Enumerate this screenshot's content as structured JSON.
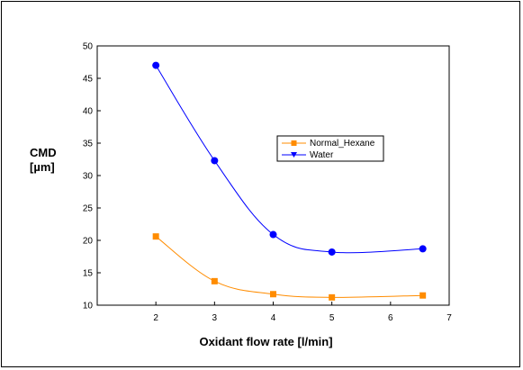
{
  "chart_data": {
    "type": "line",
    "xlabel": "Oxidant flow rate [l/min]",
    "ylabel_lines": [
      "CMD",
      "[µm]"
    ],
    "xlim": [
      1,
      7
    ],
    "ylim": [
      10,
      50
    ],
    "x_ticks": [
      2,
      3,
      4,
      5,
      6,
      7
    ],
    "y_ticks": [
      10,
      15,
      20,
      25,
      30,
      35,
      40,
      45,
      50
    ],
    "grid": false,
    "legend_position": "middle-right",
    "series": [
      {
        "name": "Normal_Hexane",
        "color": "#ff8c00",
        "marker": "square",
        "x": [
          2,
          3,
          4,
          5,
          6.55
        ],
        "y": [
          20.6,
          13.7,
          11.7,
          11.2,
          11.5
        ]
      },
      {
        "name": "Water",
        "color": "#0000ff",
        "marker": "circle",
        "x": [
          2,
          3,
          4,
          5,
          6.55
        ],
        "y": [
          47.0,
          32.3,
          20.9,
          18.2,
          18.7
        ]
      }
    ]
  }
}
